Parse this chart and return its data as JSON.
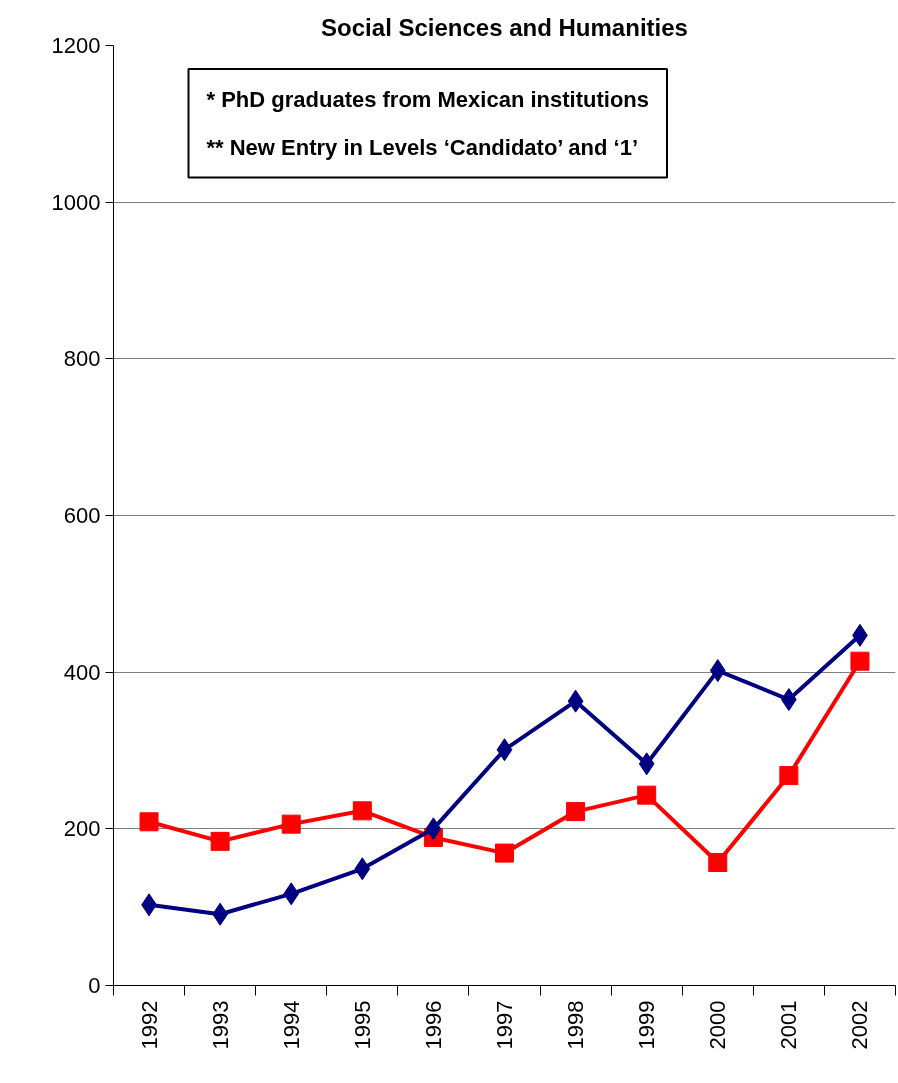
{
  "chart_data": {
    "type": "line",
    "title": "Social Sciences and Humanities",
    "categories": [
      "1992",
      "1993",
      "1994",
      "1995",
      "1996",
      "1997",
      "1998",
      "1999",
      "2000",
      "2001",
      "2002"
    ],
    "series": [
      {
        "color": "#ff0000",
        "marker": "square",
        "values": [
          209,
          184,
          206,
          223,
          189,
          169,
          222,
          243,
          157,
          268,
          414
        ]
      },
      {
        "color": "#000080",
        "marker": "diamond",
        "values": [
          103,
          91,
          117,
          149,
          200,
          301,
          363,
          283,
          402,
          365,
          447
        ]
      }
    ],
    "ylim": [
      0,
      1200
    ],
    "yticks": [
      0,
      200,
      400,
      600,
      800,
      1000,
      1200
    ],
    "grid": "y",
    "line_style": "solid",
    "annotations": [
      "* PhD graduates from Mexican institutions",
      "** New Entry in Levels ‘Candidato’ and ‘1’"
    ]
  }
}
